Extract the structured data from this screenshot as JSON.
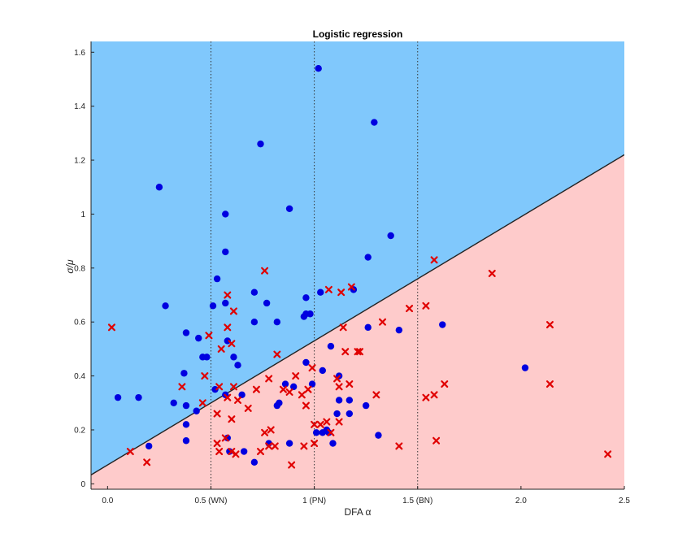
{
  "chart_data": {
    "type": "scatter",
    "title": "Logistic regression",
    "xlabel": "DFA α",
    "ylabel": "σ/μ",
    "xlim": [
      -0.08,
      2.5
    ],
    "ylim": [
      -0.02,
      1.64
    ],
    "x_ticks": [
      {
        "value": 0.0,
        "label": "0.0"
      },
      {
        "value": 0.5,
        "label": "0.5 (WN)"
      },
      {
        "value": 1.0,
        "label": "1 (PN)"
      },
      {
        "value": 1.5,
        "label": "1.5 (BN)"
      },
      {
        "value": 2.0,
        "label": "2.0"
      },
      {
        "value": 2.5,
        "label": "2.5"
      }
    ],
    "y_ticks": [
      {
        "value": 0,
        "label": "0"
      },
      {
        "value": 0.2,
        "label": "0.2"
      },
      {
        "value": 0.4,
        "label": "0.4"
      },
      {
        "value": 0.6,
        "label": "0.6"
      },
      {
        "value": 0.8,
        "label": "0.8"
      },
      {
        "value": 1.0,
        "label": "1"
      },
      {
        "value": 1.2,
        "label": "1.2"
      },
      {
        "value": 1.4,
        "label": "1.4"
      },
      {
        "value": 1.6,
        "label": "1.6"
      }
    ],
    "reference_lines_x": [
      0.5,
      1.0,
      1.5
    ],
    "decision_boundary": {
      "intercept": 0.07,
      "slope": 0.46
    },
    "region_colors": {
      "above": "#80c8fc",
      "below": "#fecbcb"
    },
    "grid": false,
    "series": [
      {
        "marker": "circle",
        "color": "#0000e0",
        "points": [
          [
            1.02,
            1.54
          ],
          [
            1.29,
            1.34
          ],
          [
            0.74,
            1.26
          ],
          [
            0.25,
            1.1
          ],
          [
            0.57,
            1.0
          ],
          [
            0.88,
            1.02
          ],
          [
            1.37,
            0.92
          ],
          [
            0.57,
            0.86
          ],
          [
            1.26,
            0.84
          ],
          [
            0.53,
            0.76
          ],
          [
            0.28,
            0.66
          ],
          [
            0.51,
            0.66
          ],
          [
            0.57,
            0.67
          ],
          [
            0.71,
            0.71
          ],
          [
            0.77,
            0.67
          ],
          [
            0.96,
            0.69
          ],
          [
            1.03,
            0.71
          ],
          [
            1.19,
            0.72
          ],
          [
            0.96,
            0.63
          ],
          [
            0.98,
            0.63
          ],
          [
            0.71,
            0.6
          ],
          [
            0.82,
            0.6
          ],
          [
            0.95,
            0.62
          ],
          [
            0.38,
            0.56
          ],
          [
            0.44,
            0.54
          ],
          [
            0.46,
            0.47
          ],
          [
            0.48,
            0.47
          ],
          [
            0.58,
            0.53
          ],
          [
            0.61,
            0.47
          ],
          [
            0.63,
            0.44
          ],
          [
            0.37,
            0.41
          ],
          [
            1.26,
            0.58
          ],
          [
            1.41,
            0.57
          ],
          [
            1.62,
            0.59
          ],
          [
            1.08,
            0.51
          ],
          [
            0.96,
            0.45
          ],
          [
            0.99,
            0.37
          ],
          [
            1.04,
            0.42
          ],
          [
            0.86,
            0.37
          ],
          [
            0.05,
            0.32
          ],
          [
            0.15,
            0.32
          ],
          [
            0.32,
            0.3
          ],
          [
            0.38,
            0.29
          ],
          [
            0.43,
            0.27
          ],
          [
            0.38,
            0.22
          ],
          [
            0.38,
            0.16
          ],
          [
            0.2,
            0.14
          ],
          [
            0.52,
            0.35
          ],
          [
            0.57,
            0.33
          ],
          [
            0.65,
            0.33
          ],
          [
            0.82,
            0.29
          ],
          [
            1.12,
            0.4
          ],
          [
            1.12,
            0.31
          ],
          [
            1.17,
            0.31
          ],
          [
            1.25,
            0.29
          ],
          [
            1.17,
            0.26
          ],
          [
            1.11,
            0.26
          ],
          [
            1.07,
            0.19
          ],
          [
            1.04,
            0.19
          ],
          [
            1.01,
            0.19
          ],
          [
            1.09,
            0.15
          ],
          [
            0.88,
            0.15
          ],
          [
            0.78,
            0.15
          ],
          [
            0.58,
            0.17
          ],
          [
            0.59,
            0.12
          ],
          [
            0.66,
            0.12
          ],
          [
            0.71,
            0.08
          ],
          [
            1.31,
            0.18
          ],
          [
            2.02,
            0.43
          ],
          [
            1.06,
            0.2
          ],
          [
            0.9,
            0.36
          ],
          [
            0.83,
            0.3
          ]
        ]
      },
      {
        "marker": "x",
        "color": "#e00000",
        "points": [
          [
            0.02,
            0.58
          ],
          [
            0.76,
            0.79
          ],
          [
            1.58,
            0.83
          ],
          [
            1.86,
            0.78
          ],
          [
            0.58,
            0.7
          ],
          [
            1.07,
            0.72
          ],
          [
            1.13,
            0.71
          ],
          [
            1.18,
            0.73
          ],
          [
            0.61,
            0.64
          ],
          [
            1.46,
            0.65
          ],
          [
            1.54,
            0.66
          ],
          [
            0.58,
            0.58
          ],
          [
            0.49,
            0.55
          ],
          [
            0.6,
            0.52
          ],
          [
            0.55,
            0.5
          ],
          [
            1.14,
            0.58
          ],
          [
            1.33,
            0.6
          ],
          [
            1.15,
            0.49
          ],
          [
            1.22,
            0.49
          ],
          [
            0.82,
            0.48
          ],
          [
            0.47,
            0.4
          ],
          [
            0.36,
            0.36
          ],
          [
            0.54,
            0.36
          ],
          [
            0.61,
            0.36
          ],
          [
            0.72,
            0.35
          ],
          [
            0.78,
            0.39
          ],
          [
            0.85,
            0.35
          ],
          [
            0.88,
            0.34
          ],
          [
            0.94,
            0.33
          ],
          [
            0.97,
            0.35
          ],
          [
            0.91,
            0.4
          ],
          [
            0.96,
            0.29
          ],
          [
            1.17,
            0.37
          ],
          [
            1.11,
            0.39
          ],
          [
            1.12,
            0.36
          ],
          [
            1.3,
            0.33
          ],
          [
            1.54,
            0.32
          ],
          [
            1.58,
            0.33
          ],
          [
            1.63,
            0.37
          ],
          [
            2.14,
            0.59
          ],
          [
            2.14,
            0.37
          ],
          [
            0.46,
            0.3
          ],
          [
            0.53,
            0.26
          ],
          [
            0.58,
            0.32
          ],
          [
            0.63,
            0.31
          ],
          [
            0.6,
            0.24
          ],
          [
            0.68,
            0.28
          ],
          [
            0.76,
            0.19
          ],
          [
            0.79,
            0.2
          ],
          [
            0.78,
            0.14
          ],
          [
            0.81,
            0.14
          ],
          [
            0.89,
            0.07
          ],
          [
            0.95,
            0.14
          ],
          [
            1.0,
            0.15
          ],
          [
            1.0,
            0.22
          ],
          [
            1.03,
            0.22
          ],
          [
            1.06,
            0.23
          ],
          [
            1.08,
            0.19
          ],
          [
            1.12,
            0.23
          ],
          [
            1.41,
            0.14
          ],
          [
            1.59,
            0.16
          ],
          [
            2.42,
            0.11
          ],
          [
            0.11,
            0.12
          ],
          [
            0.19,
            0.08
          ],
          [
            0.53,
            0.15
          ],
          [
            0.54,
            0.12
          ],
          [
            0.6,
            0.12
          ],
          [
            0.62,
            0.11
          ],
          [
            0.57,
            0.17
          ],
          [
            0.74,
            0.12
          ],
          [
            0.99,
            0.43
          ],
          [
            1.21,
            0.49
          ]
        ]
      }
    ]
  }
}
